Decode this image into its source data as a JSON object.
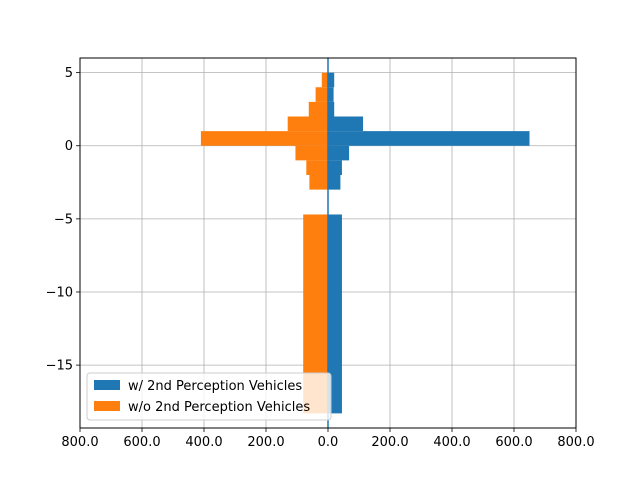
{
  "chart_data": {
    "type": "bar",
    "orientation": "horizontal-diverging",
    "title": "",
    "xlabel": "",
    "ylabel": "",
    "xlim": [
      -800,
      800
    ],
    "ylim": [
      -19.3,
      6
    ],
    "grid": true,
    "legend_position": "lower-left",
    "x_ticks": [
      {
        "value": -800,
        "label": "800.0"
      },
      {
        "value": -600,
        "label": "600.0"
      },
      {
        "value": -400,
        "label": "400.0"
      },
      {
        "value": -200,
        "label": "200.0"
      },
      {
        "value": 0,
        "label": "0.0"
      },
      {
        "value": 200,
        "label": "200.0"
      },
      {
        "value": 400,
        "label": "400.0"
      },
      {
        "value": 600,
        "label": "600.0"
      },
      {
        "value": 800,
        "label": "800.0"
      }
    ],
    "y_ticks": [
      {
        "value": 5,
        "label": "5"
      },
      {
        "value": 0,
        "label": "0"
      },
      {
        "value": -5,
        "label": "−5"
      },
      {
        "value": -10,
        "label": "−10"
      },
      {
        "value": -15,
        "label": "−15"
      }
    ],
    "series": [
      {
        "name": "w/ 2nd Perception Vehicles",
        "color": "#1f77b4",
        "direction": "right",
        "bars": [
          {
            "y0": 4.0,
            "y1": 5.0,
            "value": 20
          },
          {
            "y0": 3.0,
            "y1": 4.0,
            "value": 18
          },
          {
            "y0": 2.0,
            "y1": 3.0,
            "value": 20
          },
          {
            "y0": 1.0,
            "y1": 2.0,
            "value": 113
          },
          {
            "y0": 0.0,
            "y1": 1.0,
            "value": 650
          },
          {
            "y0": -1.0,
            "y1": 0.0,
            "value": 68
          },
          {
            "y0": -2.0,
            "y1": -1.0,
            "value": 45
          },
          {
            "y0": -3.0,
            "y1": -2.0,
            "value": 40
          },
          {
            "y0": -18.3,
            "y1": -4.7,
            "value": 45
          }
        ]
      },
      {
        "name": "w/o 2nd Perception Vehicles",
        "color": "#ff7f0e",
        "direction": "left",
        "bars": [
          {
            "y0": 4.0,
            "y1": 5.0,
            "value": 20
          },
          {
            "y0": 3.0,
            "y1": 4.0,
            "value": 40
          },
          {
            "y0": 2.0,
            "y1": 3.0,
            "value": 62
          },
          {
            "y0": 1.0,
            "y1": 2.0,
            "value": 130
          },
          {
            "y0": 0.0,
            "y1": 1.0,
            "value": 410
          },
          {
            "y0": -1.0,
            "y1": 0.0,
            "value": 105
          },
          {
            "y0": -2.0,
            "y1": -1.0,
            "value": 70
          },
          {
            "y0": -3.0,
            "y1": -2.0,
            "value": 60
          },
          {
            "y0": -18.3,
            "y1": -4.7,
            "value": 80
          }
        ]
      }
    ],
    "zero_line_color": "#1f77b4"
  }
}
